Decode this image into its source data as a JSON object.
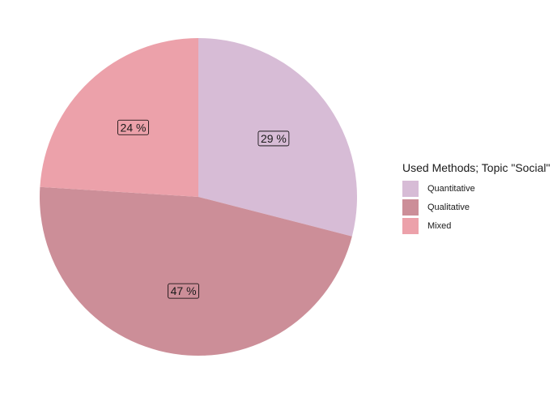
{
  "chart_data": {
    "type": "pie",
    "categories": [
      "Quantitative",
      "Qualitative",
      "Mixed"
    ],
    "values": [
      29,
      47,
      24
    ],
    "value_labels": [
      "29 %",
      "47 %",
      "24 %"
    ],
    "colors": [
      "#d7bcd6",
      "#cc8e98",
      "#eca1aa"
    ],
    "start_angle_deg": 0,
    "direction": "clockwise",
    "legend": {
      "title": "Used Methods; Topic \"Social\"",
      "placement": "right"
    }
  }
}
